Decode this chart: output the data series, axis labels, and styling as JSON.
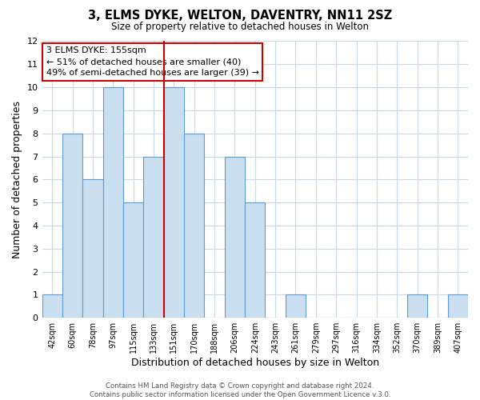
{
  "title": "3, ELMS DYKE, WELTON, DAVENTRY, NN11 2SZ",
  "subtitle": "Size of property relative to detached houses in Welton",
  "xlabel": "Distribution of detached houses by size in Welton",
  "ylabel": "Number of detached properties",
  "categories": [
    "42sqm",
    "60sqm",
    "78sqm",
    "97sqm",
    "115sqm",
    "133sqm",
    "151sqm",
    "170sqm",
    "188sqm",
    "206sqm",
    "224sqm",
    "243sqm",
    "261sqm",
    "279sqm",
    "297sqm",
    "316sqm",
    "334sqm",
    "352sqm",
    "370sqm",
    "389sqm",
    "407sqm"
  ],
  "values": [
    1,
    8,
    6,
    10,
    5,
    7,
    10,
    8,
    0,
    7,
    5,
    0,
    1,
    0,
    0,
    0,
    0,
    0,
    1,
    0,
    1
  ],
  "bar_color": "#c9dff0",
  "bar_edge_color": "#5b9bd5",
  "highlight_index": 6,
  "highlight_line_color": "#cc0000",
  "ylim": [
    0,
    12
  ],
  "yticks": [
    0,
    1,
    2,
    3,
    4,
    5,
    6,
    7,
    8,
    9,
    10,
    11,
    12
  ],
  "annotation_lines": [
    "3 ELMS DYKE: 155sqm",
    "← 51% of detached houses are smaller (40)",
    "49% of semi-detached houses are larger (39) →"
  ],
  "annotation_box_color": "#ffffff",
  "annotation_box_edge": "#cc0000",
  "footer_line1": "Contains HM Land Registry data © Crown copyright and database right 2024.",
  "footer_line2": "Contains public sector information licensed under the Open Government Licence v.3.0.",
  "background_color": "#ffffff",
  "grid_color": "#c8d8e8"
}
